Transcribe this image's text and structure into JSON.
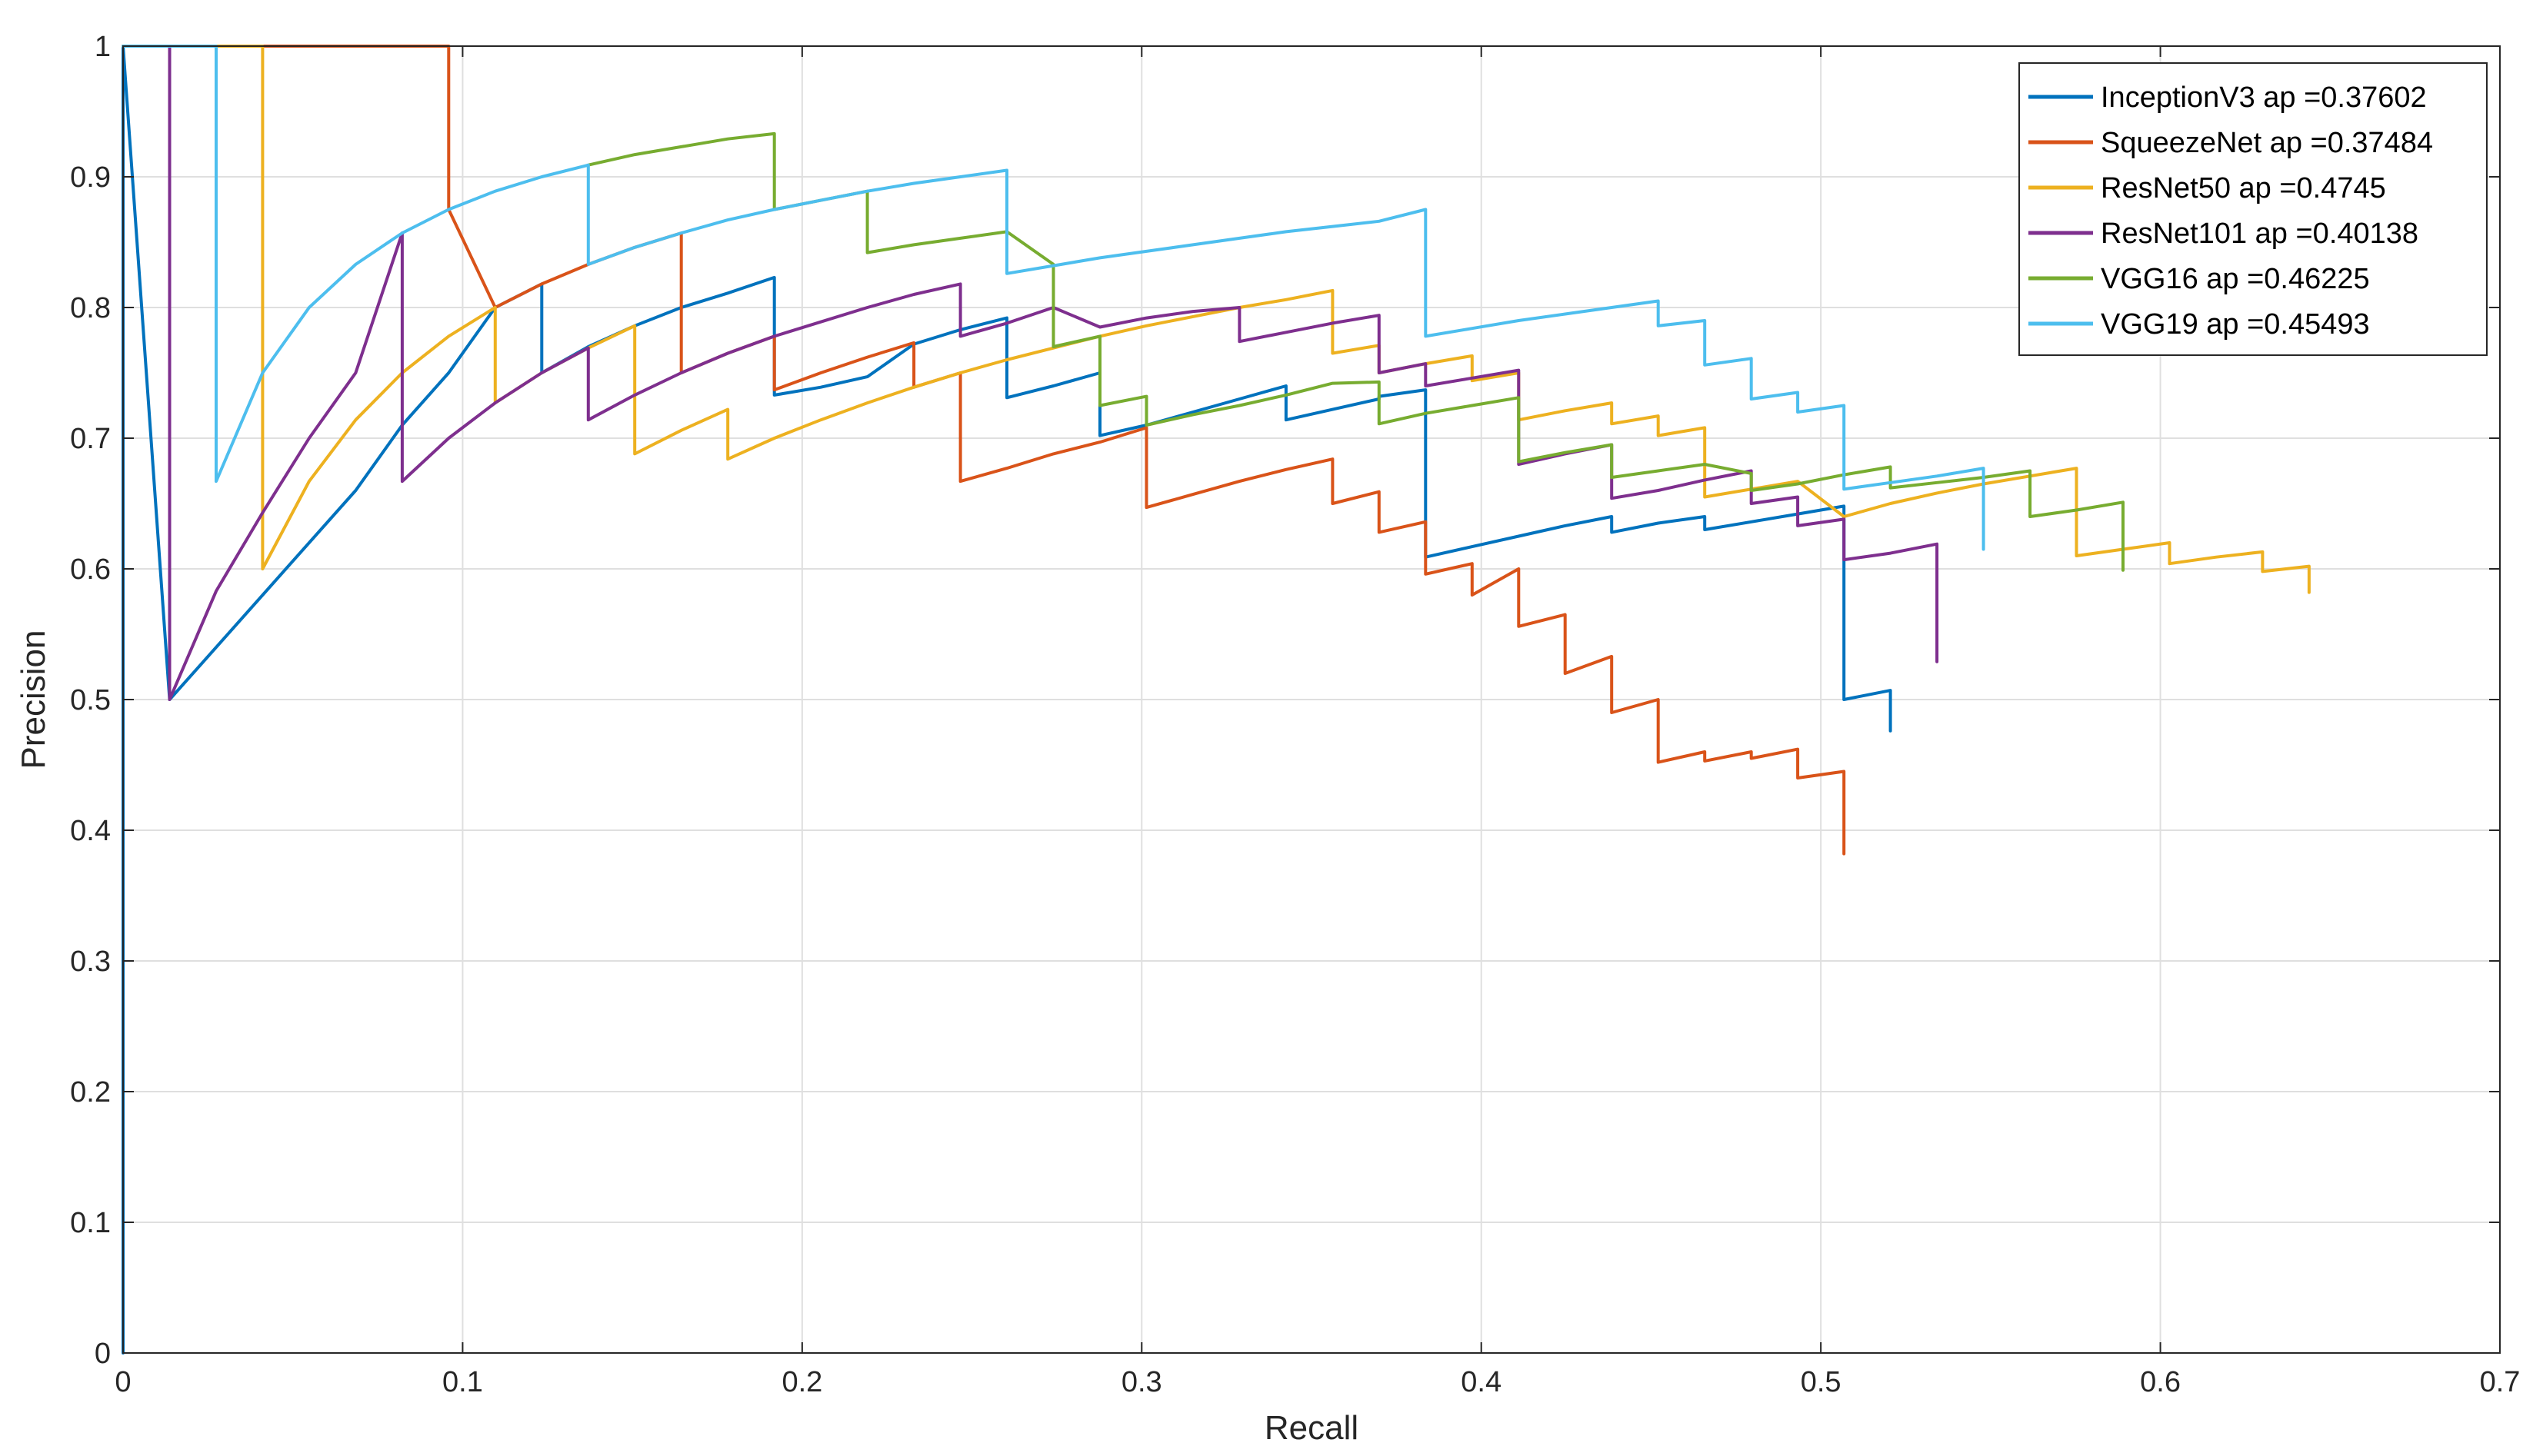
{
  "chart_data": {
    "type": "line",
    "title": "",
    "xlabel": "Recall",
    "ylabel": "Precision",
    "xlim": [
      0,
      0.7
    ],
    "ylim": [
      0,
      1
    ],
    "xticks": [
      0,
      0.1,
      0.2,
      0.3,
      0.4,
      0.5,
      0.6,
      0.7
    ],
    "yticks": [
      0,
      0.1,
      0.2,
      0.3,
      0.4,
      0.5,
      0.6,
      0.7,
      0.8,
      0.9,
      1
    ],
    "xtick_labels": [
      "0",
      "0.1",
      "0.2",
      "0.3",
      "0.4",
      "0.5",
      "0.6",
      "0.7"
    ],
    "ytick_labels": [
      "0",
      "0.1",
      "0.2",
      "0.3",
      "0.4",
      "0.5",
      "0.6",
      "0.7",
      "0.8",
      "0.9",
      "1"
    ],
    "grid": true,
    "legend_position": "top-right",
    "series": [
      {
        "name": "InceptionV3 ap =0.37602",
        "color": "#0072BD",
        "x": [
          0,
          0,
          0.0137,
          0.0685,
          0.0822,
          0.0959,
          0.1096,
          0.1233,
          0.1233,
          0.137,
          0.1507,
          0.1644,
          0.1781,
          0.1918,
          0.1918,
          0.2055,
          0.2192,
          0.2329,
          0.2466,
          0.2603,
          0.2603,
          0.274,
          0.2877,
          0.2877,
          0.3014,
          0.3151,
          0.3288,
          0.3425,
          0.3425,
          0.3562,
          0.3699,
          0.3699,
          0.3836,
          0.3836,
          0.3973,
          0.411,
          0.4247,
          0.4384,
          0.4384,
          0.4521,
          0.4658,
          0.4658,
          0.4795,
          0.4932,
          0.5068,
          0.5068,
          0.5205,
          0.5205
        ],
        "y": [
          0,
          1,
          0.5,
          0.66,
          0.71,
          0.75,
          0.8,
          0.818,
          0.75,
          0.77,
          0.786,
          0.8,
          0.811,
          0.823,
          0.733,
          0.739,
          0.747,
          0.772,
          0.783,
          0.792,
          0.731,
          0.74,
          0.75,
          0.702,
          0.71,
          0.72,
          0.73,
          0.74,
          0.714,
          0.722,
          0.73,
          0.732,
          0.737,
          0.609,
          0.617,
          0.625,
          0.633,
          0.64,
          0.628,
          0.635,
          0.64,
          0.63,
          0.636,
          0.642,
          0.648,
          0.5,
          0.507,
          0.476
        ]
      },
      {
        "name": "SqueezeNet ap =0.37484",
        "color": "#D95319",
        "x": [
          0,
          0.0959,
          0.0959,
          0.1096,
          0.1233,
          0.137,
          0.1507,
          0.1644,
          0.1644,
          0.1781,
          0.1918,
          0.1918,
          0.2055,
          0.2192,
          0.2329,
          0.2329,
          0.2466,
          0.2466,
          0.2603,
          0.274,
          0.2877,
          0.3014,
          0.3014,
          0.3151,
          0.3288,
          0.3425,
          0.3562,
          0.3562,
          0.3699,
          0.3699,
          0.3836,
          0.3836,
          0.3973,
          0.3973,
          0.411,
          0.411,
          0.4247,
          0.4247,
          0.4384,
          0.4384,
          0.4521,
          0.4521,
          0.4658,
          0.4658,
          0.4795,
          0.4795,
          0.4932,
          0.4932,
          0.5068,
          0.5068
        ],
        "y": [
          1,
          1,
          0.875,
          0.8,
          0.818,
          0.833,
          0.846,
          0.857,
          0.75,
          0.765,
          0.778,
          0.737,
          0.75,
          0.762,
          0.773,
          0.739,
          0.75,
          0.667,
          0.677,
          0.688,
          0.697,
          0.708,
          0.647,
          0.657,
          0.667,
          0.676,
          0.684,
          0.65,
          0.659,
          0.628,
          0.636,
          0.596,
          0.604,
          0.58,
          0.6,
          0.556,
          0.565,
          0.52,
          0.533,
          0.49,
          0.5,
          0.452,
          0.46,
          0.453,
          0.46,
          0.455,
          0.462,
          0.44,
          0.445,
          0.382
        ]
      },
      {
        "name": "ResNet50 ap =0.4745",
        "color": "#EDB120",
        "x": [
          0,
          0.0411,
          0.0411,
          0.0548,
          0.0685,
          0.0822,
          0.0959,
          0.1096,
          0.1096,
          0.1233,
          0.137,
          0.1507,
          0.1507,
          0.1644,
          0.1781,
          0.1781,
          0.1918,
          0.2055,
          0.2192,
          0.2329,
          0.2466,
          0.2603,
          0.274,
          0.2877,
          0.3014,
          0.3151,
          0.3288,
          0.3288,
          0.3425,
          0.3562,
          0.3562,
          0.3699,
          0.3699,
          0.3836,
          0.3973,
          0.3973,
          0.411,
          0.411,
          0.4247,
          0.4384,
          0.4384,
          0.4521,
          0.4521,
          0.4658,
          0.4658,
          0.4795,
          0.4932,
          0.5068,
          0.5205,
          0.5342,
          0.5479,
          0.5616,
          0.5753,
          0.5753,
          0.589,
          0.6027,
          0.6027,
          0.6164,
          0.6301,
          0.6301,
          0.6438,
          0.6438
        ],
        "y": [
          1,
          1,
          0.6,
          0.667,
          0.714,
          0.75,
          0.778,
          0.8,
          0.727,
          0.75,
          0.769,
          0.786,
          0.688,
          0.706,
          0.722,
          0.684,
          0.7,
          0.714,
          0.727,
          0.739,
          0.75,
          0.76,
          0.769,
          0.778,
          0.786,
          0.793,
          0.8,
          0.8,
          0.806,
          0.813,
          0.765,
          0.771,
          0.75,
          0.757,
          0.763,
          0.744,
          0.75,
          0.714,
          0.721,
          0.727,
          0.711,
          0.717,
          0.702,
          0.708,
          0.655,
          0.661,
          0.667,
          0.64,
          0.65,
          0.658,
          0.665,
          0.671,
          0.677,
          0.61,
          0.615,
          0.62,
          0.604,
          0.609,
          0.613,
          0.598,
          0.602,
          0.582
        ]
      },
      {
        "name": "ResNet101 ap =0.40138",
        "color": "#7E2F8E",
        "x": [
          0.0137,
          0.0137,
          0.0274,
          0.0411,
          0.0548,
          0.0685,
          0.0822,
          0.0822,
          0.0959,
          0.1096,
          0.1233,
          0.137,
          0.137,
          0.1507,
          0.1644,
          0.1781,
          0.1918,
          0.2055,
          0.2192,
          0.2329,
          0.2466,
          0.2466,
          0.2603,
          0.274,
          0.274,
          0.2877,
          0.3014,
          0.3151,
          0.3288,
          0.3288,
          0.3425,
          0.3562,
          0.3699,
          0.3699,
          0.3836,
          0.3836,
          0.3973,
          0.411,
          0.411,
          0.4247,
          0.4384,
          0.4384,
          0.4521,
          0.4658,
          0.4795,
          0.4795,
          0.4932,
          0.4932,
          0.5068,
          0.5068,
          0.5205,
          0.5342,
          0.5342
        ],
        "y": [
          1,
          0.5,
          0.583,
          0.643,
          0.7,
          0.75,
          0.857,
          0.667,
          0.7,
          0.727,
          0.75,
          0.769,
          0.714,
          0.733,
          0.75,
          0.765,
          0.778,
          0.789,
          0.8,
          0.81,
          0.818,
          0.778,
          0.788,
          0.8,
          0.8,
          0.785,
          0.792,
          0.797,
          0.8,
          0.774,
          0.781,
          0.788,
          0.794,
          0.75,
          0.757,
          0.74,
          0.746,
          0.752,
          0.68,
          0.688,
          0.695,
          0.654,
          0.66,
          0.668,
          0.675,
          0.65,
          0.655,
          0.633,
          0.638,
          0.607,
          0.612,
          0.619,
          0.529
        ]
      },
      {
        "name": "VGG16 ap =0.46225",
        "color": "#77AC30",
        "x": [
          0.137,
          0.1507,
          0.1644,
          0.1781,
          0.1918,
          0.1918,
          0.2055,
          0.2192,
          0.2192,
          0.2329,
          0.2466,
          0.2603,
          0.274,
          0.274,
          0.2877,
          0.2877,
          0.3014,
          0.3014,
          0.3151,
          0.3288,
          0.3425,
          0.3562,
          0.3699,
          0.3699,
          0.3836,
          0.3973,
          0.411,
          0.411,
          0.4247,
          0.4384,
          0.4384,
          0.4521,
          0.4658,
          0.4795,
          0.4795,
          0.4932,
          0.5068,
          0.5205,
          0.5205,
          0.5342,
          0.5479,
          0.5616,
          0.5616,
          0.5753,
          0.589,
          0.589
        ],
        "y": [
          0.909,
          0.917,
          0.923,
          0.929,
          0.933,
          0.875,
          0.882,
          0.889,
          0.842,
          0.848,
          0.853,
          0.858,
          0.833,
          0.77,
          0.778,
          0.725,
          0.732,
          0.71,
          0.718,
          0.725,
          0.733,
          0.742,
          0.743,
          0.711,
          0.719,
          0.725,
          0.731,
          0.682,
          0.689,
          0.695,
          0.67,
          0.675,
          0.68,
          0.673,
          0.66,
          0.665,
          0.672,
          0.678,
          0.662,
          0.666,
          0.67,
          0.675,
          0.64,
          0.645,
          0.651,
          0.599
        ]
      },
      {
        "name": "VGG19 ap =0.45493",
        "color": "#4DBEEE",
        "x": [
          0,
          0.0274,
          0.0274,
          0.0411,
          0.0548,
          0.0685,
          0.0822,
          0.0959,
          0.1096,
          0.1233,
          0.137,
          0.137,
          0.1507,
          0.1644,
          0.1781,
          0.1918,
          0.2055,
          0.2192,
          0.2329,
          0.2466,
          0.2603,
          0.2603,
          0.274,
          0.2877,
          0.3014,
          0.3151,
          0.3288,
          0.3425,
          0.3562,
          0.3699,
          0.3836,
          0.3836,
          0.3973,
          0.411,
          0.4247,
          0.4384,
          0.4521,
          0.4521,
          0.4658,
          0.4658,
          0.4795,
          0.4795,
          0.4932,
          0.4932,
          0.5068,
          0.5068,
          0.5205,
          0.5342,
          0.5479,
          0.5479
        ],
        "y": [
          1,
          1,
          0.667,
          0.75,
          0.8,
          0.833,
          0.857,
          0.875,
          0.889,
          0.9,
          0.909,
          0.833,
          0.846,
          0.857,
          0.867,
          0.875,
          0.882,
          0.889,
          0.895,
          0.9,
          0.905,
          0.826,
          0.832,
          0.838,
          0.843,
          0.848,
          0.853,
          0.858,
          0.862,
          0.866,
          0.875,
          0.778,
          0.784,
          0.79,
          0.795,
          0.8,
          0.805,
          0.786,
          0.79,
          0.756,
          0.761,
          0.73,
          0.735,
          0.72,
          0.725,
          0.661,
          0.666,
          0.671,
          0.677,
          0.615
        ]
      }
    ]
  }
}
